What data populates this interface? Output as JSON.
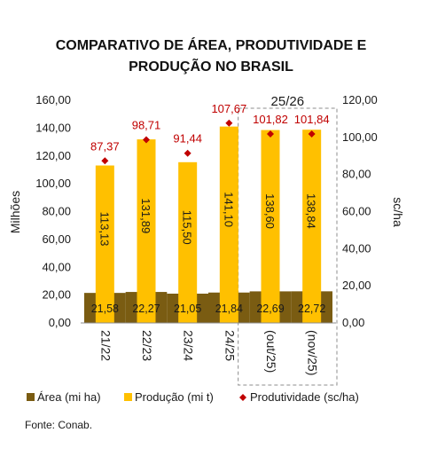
{
  "chart_data": {
    "type": "bar",
    "title_lines": [
      "COMPARATIVO DE ÁREA, PRODUTIVIDADE E",
      "PRODUÇÃO NO BRASIL"
    ],
    "categories": [
      "21/22",
      "22/23",
      "23/24",
      "24/25",
      "(out/25)",
      "(nov/25)"
    ],
    "bracket_label": "25/26",
    "ylabel_left": "Milhões",
    "ylabel_right": "sc/ha",
    "ylim_left": [
      0,
      160
    ],
    "ylim_right": [
      0,
      120
    ],
    "yticks_left": [
      "0,00",
      "20,00",
      "40,00",
      "60,00",
      "80,00",
      "100,00",
      "120,00",
      "140,00",
      "160,00"
    ],
    "yticks_right": [
      "0,00",
      "20,00",
      "40,00",
      "60,00",
      "80,00",
      "100,00",
      "120,00"
    ],
    "series": [
      {
        "name": "Área (mi ha)",
        "axis": "left",
        "type": "bar",
        "color": "#7a5c12",
        "values": [
          21.58,
          22.27,
          21.05,
          21.84,
          22.69,
          22.72
        ],
        "labels": [
          "21,58",
          "22,27",
          "21,05",
          "21,84",
          "22,69",
          "22,72"
        ]
      },
      {
        "name": "Produção (mi t)",
        "axis": "left",
        "type": "bar",
        "color": "#ffc000",
        "values": [
          113.13,
          131.89,
          115.5,
          141.1,
          138.6,
          138.84
        ],
        "labels": [
          "113,13",
          "131,89",
          "115,50",
          "141,10",
          "138,60",
          "138,84"
        ]
      },
      {
        "name": "Produtividade (sc/ha)",
        "axis": "right",
        "type": "marker",
        "color": "#c00000",
        "values": [
          87.37,
          98.71,
          91.44,
          107.67,
          101.82,
          101.84
        ],
        "labels": [
          "87,37",
          "98,71",
          "91,44",
          "107,67",
          "101,82",
          "101,84"
        ]
      }
    ],
    "legend_position": "bottom"
  },
  "footer": {
    "source": "Fonte: Conab."
  }
}
